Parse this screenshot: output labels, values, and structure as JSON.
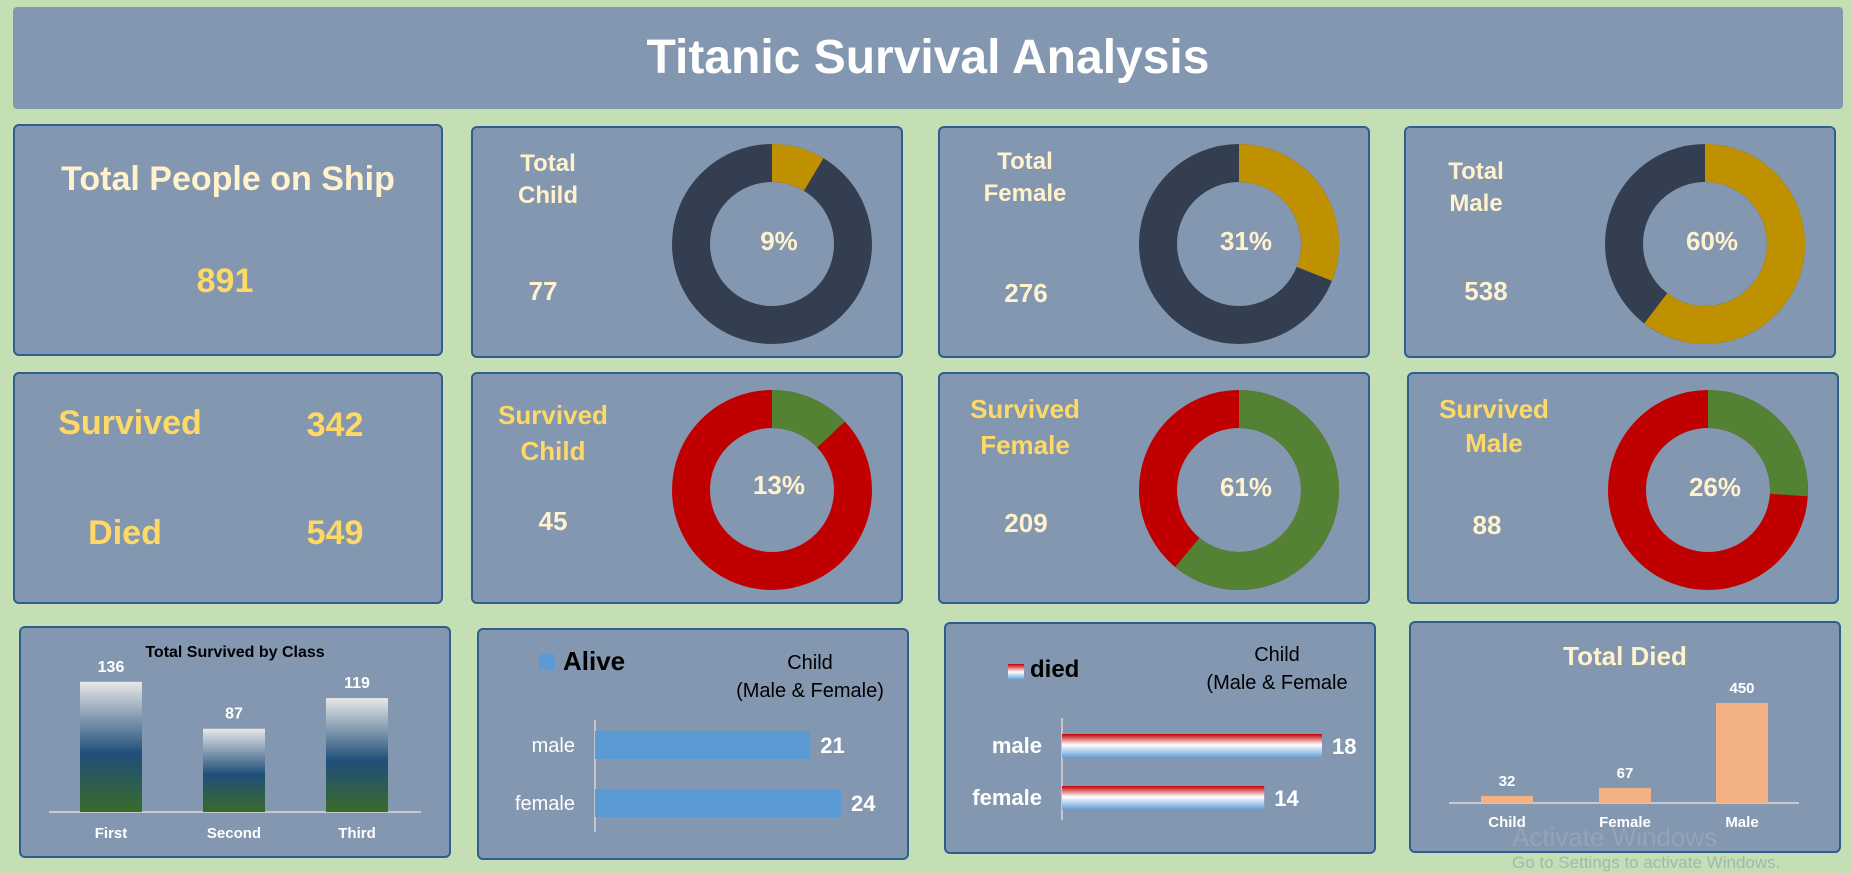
{
  "title": "Titanic Survival Analysis",
  "total_people": {
    "label": "Total People on Ship",
    "value": "891"
  },
  "survival_summary": {
    "survived_label": "Survived",
    "survived_value": "342",
    "died_label": "Died",
    "died_value": "549"
  },
  "kpi_donuts": [
    {
      "label_line1": "Total",
      "label_line2": "Child",
      "count": "77",
      "pct_text": "9%",
      "value": 0.086
    },
    {
      "label_line1": "Total",
      "label_line2": "Female",
      "count": "276",
      "pct_text": "31%",
      "value": 0.31
    },
    {
      "label_line1": "Total",
      "label_line2": "Male",
      "count": "538",
      "pct_text": "60%",
      "value": 0.604
    },
    {
      "label_line1": "Survived",
      "label_line2": "Child",
      "count": "45",
      "pct_text": "13%",
      "value": 0.13
    },
    {
      "label_line1": "Survived",
      "label_line2": "Female",
      "count": "209",
      "pct_text": "61%",
      "value": 0.61
    },
    {
      "label_line1": "Survived",
      "label_line2": "Male",
      "count": "88",
      "pct_text": "26%",
      "value": 0.26
    }
  ],
  "colors": {
    "gold": "#bf9000",
    "navy": "#333f50",
    "green": "#548235",
    "red": "#c00000",
    "panel": "#8497b0",
    "bar_blue": "#5b9bd5",
    "bar_peach": "#f4b183"
  },
  "chart_data": [
    {
      "type": "bar",
      "title": "Total Survived by Class",
      "categories": [
        "First",
        "Second",
        "Third"
      ],
      "values": [
        136,
        87,
        119
      ],
      "ylim": [
        0,
        140
      ]
    },
    {
      "type": "bar",
      "orientation": "horizontal",
      "title_line1": "Child",
      "title_line2": "(Male & Female)",
      "legend": "Alive",
      "categories": [
        "male",
        "female"
      ],
      "values": [
        21,
        24
      ],
      "xlim": [
        0,
        24
      ]
    },
    {
      "type": "bar",
      "orientation": "horizontal",
      "title_line1": "Child",
      "title_line2": "(Male & Female",
      "legend": "died",
      "categories": [
        "male",
        "female"
      ],
      "values": [
        18,
        14
      ],
      "xlim": [
        0,
        18
      ]
    },
    {
      "type": "bar",
      "title": "Total Died",
      "categories": [
        "Child",
        "Female",
        "Male"
      ],
      "values": [
        32,
        67,
        450
      ],
      "ylim": [
        0,
        450
      ]
    }
  ],
  "watermark": {
    "line1": "Activate Windows",
    "line2": "Go to Settings to activate Windows."
  }
}
